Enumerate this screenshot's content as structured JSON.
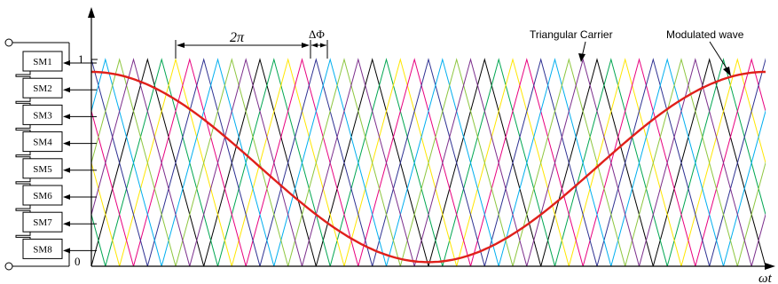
{
  "labels": {
    "two_pi": "2π",
    "delta_phi": "ΔΦ",
    "carrier": "Triangular Carrier",
    "modulated": "Modulated wave",
    "y_one": "1",
    "y_zero": "0",
    "x_axis": "ωt"
  },
  "submodules": [
    {
      "label": "SM1"
    },
    {
      "label": "SM2"
    },
    {
      "label": "SM3"
    },
    {
      "label": "SM4"
    },
    {
      "label": "SM5"
    },
    {
      "label": "SM6"
    },
    {
      "label": "SM7"
    },
    {
      "label": "SM8"
    }
  ],
  "colors": {
    "carriers": [
      "#000000",
      "#00a651",
      "#ffe600",
      "#e8007f",
      "#2e3192",
      "#00aeef",
      "#8dc63f",
      "#7b2e8c"
    ],
    "modulated": "#e0201b",
    "axis": "#000000"
  },
  "carrier_count": 8,
  "carrier_periods": 6,
  "modulated_wave": {
    "shape": "cosine",
    "min": 0,
    "max": 1,
    "cycles": 1
  }
}
